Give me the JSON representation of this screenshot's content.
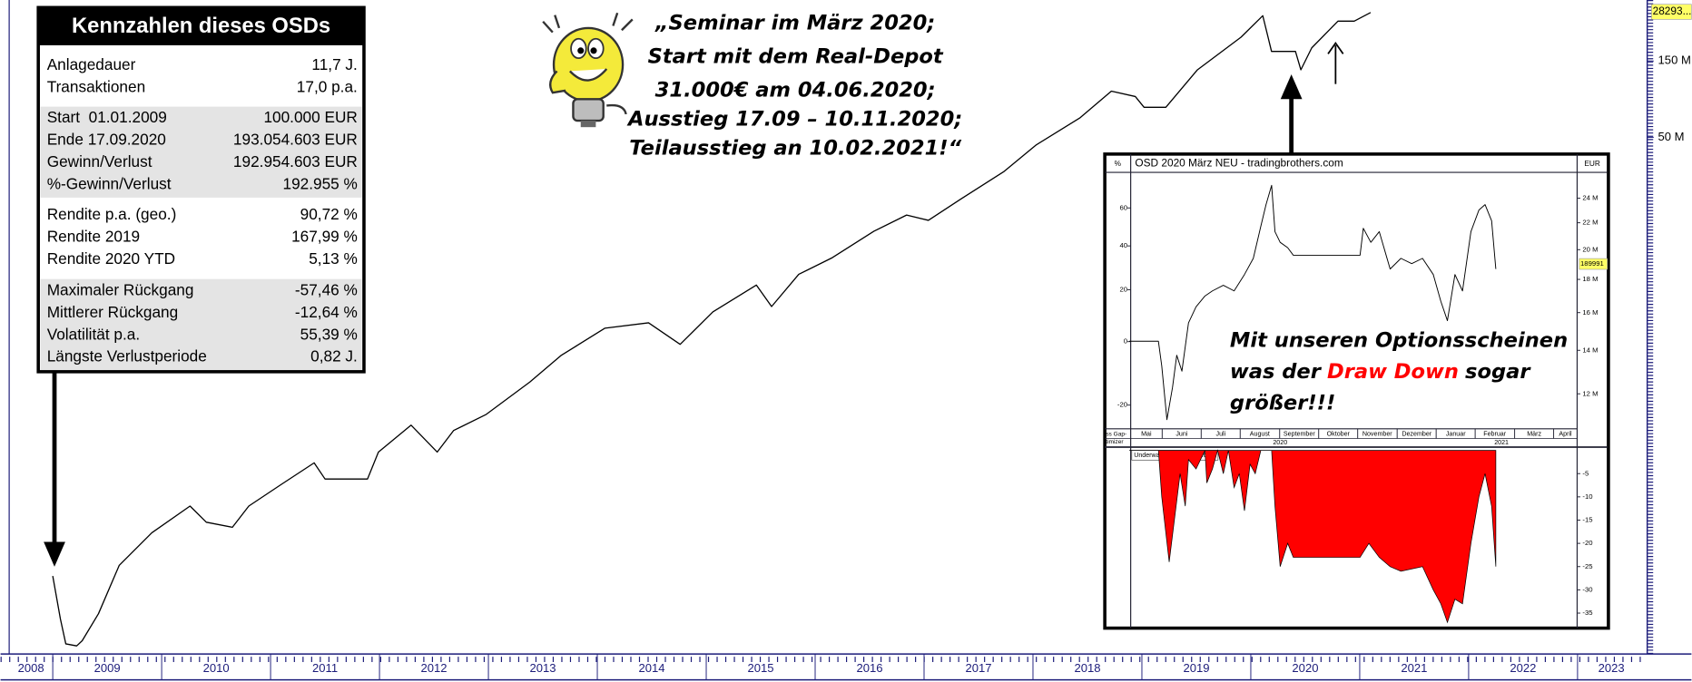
{
  "chart_data": [
    {
      "type": "line",
      "color": "#000000",
      "log_scale": true,
      "xlim": [
        2008.6,
        2023.62
      ],
      "ylim": [
        30000,
        360000000
      ],
      "xticks": [
        {
          "value": 2008,
          "label": "2008"
        },
        {
          "value": 2009,
          "label": "2009"
        },
        {
          "value": 2010,
          "label": "2010"
        },
        {
          "value": 2011,
          "label": "2011"
        },
        {
          "value": 2012,
          "label": "2012"
        },
        {
          "value": 2013,
          "label": "2013"
        },
        {
          "value": 2014,
          "label": "2014"
        },
        {
          "value": 2015,
          "label": "2015"
        },
        {
          "value": 2016,
          "label": "2016"
        },
        {
          "value": 2017,
          "label": "2017"
        },
        {
          "value": 2018,
          "label": "2018"
        },
        {
          "value": 2019,
          "label": "2019"
        },
        {
          "value": 2020,
          "label": "2020"
        },
        {
          "value": 2021,
          "label": "2021"
        },
        {
          "value": 2022,
          "label": "2022"
        },
        {
          "value": 2023,
          "label": "2023"
        }
      ],
      "yticks": [
        {
          "value": 150000000,
          "label": "150 M"
        },
        {
          "value": 50000000,
          "label": "50 M"
        }
      ],
      "current_value_label": "28293...",
      "x": [
        2009.0,
        2009.07,
        2009.12,
        2009.22,
        2009.27,
        2009.42,
        2009.61,
        2009.91,
        2010.26,
        2010.41,
        2010.65,
        2010.8,
        2011.1,
        2011.4,
        2011.5,
        2011.89,
        2011.99,
        2012.29,
        2012.53,
        2012.68,
        2012.98,
        2013.38,
        2013.67,
        2014.07,
        2014.47,
        2014.76,
        2015.06,
        2015.46,
        2015.6,
        2015.85,
        2016.15,
        2016.54,
        2016.84,
        2017.04,
        2017.34,
        2017.73,
        2018.03,
        2018.43,
        2018.72,
        2018.94,
        2019.02,
        2019.22,
        2019.51,
        2019.91,
        2020.11,
        2020.19,
        2020.41,
        2020.46,
        2020.56,
        2020.8,
        2020.95,
        2021.1
      ],
      "values": [
        92000,
        49600,
        34700,
        33700,
        36300,
        53500,
        107000,
        171000,
        251000,
        199000,
        185000,
        251000,
        343000,
        467000,
        370000,
        370000,
        545000,
        802000,
        545000,
        743000,
        937000,
        1490000,
        2190000,
        3230000,
        3490000,
        2560000,
        4080000,
        6000000,
        4410000,
        7000000,
        8830000,
        13000000,
        16400000,
        15200000,
        20700000,
        30500000,
        44900000,
        66100000,
        97200000,
        90000000,
        77100000,
        77100000,
        132000000,
        211000000,
        287000000,
        172000000,
        172000000,
        132000000,
        181000000,
        266000000,
        266000000,
        301000000
      ]
    },
    {
      "type": "line",
      "color": "#000000",
      "title": "OSD 2020 März NEU - tradingbrothers.com",
      "log_scale": true,
      "ylabel": "EUR",
      "y2label": "%",
      "y2scale": "log-return",
      "xlim": [
        2020.35,
        2021.3
      ],
      "ylim": [
        10600000,
        26300000
      ],
      "y2lim": [
        -26.4,
        81.3
      ],
      "xticks": [
        {
          "value": 2020.333,
          "label": "Mai"
        },
        {
          "value": 2020.417,
          "label": "Juni"
        },
        {
          "value": 2020.5,
          "label": "Juli"
        },
        {
          "value": 2020.583,
          "label": "August"
        },
        {
          "value": 2020.667,
          "label": "September"
        },
        {
          "value": 2020.75,
          "label": "Oktober"
        },
        {
          "value": 2020.833,
          "label": "November"
        },
        {
          "value": 2020.917,
          "label": "Dezember"
        },
        {
          "value": 2021.0,
          "label": "Januar"
        },
        {
          "value": 2021.083,
          "label": "Februar"
        },
        {
          "value": 2021.167,
          "label": "März"
        },
        {
          "value": 2021.25,
          "label": "April"
        }
      ],
      "year_labels": [
        {
          "value": 2020.668,
          "label": "2020"
        },
        {
          "value": 2021.139,
          "label": "2021"
        }
      ],
      "yticks": [
        {
          "value": 24000000,
          "label": "24 M"
        },
        {
          "value": 22000000,
          "label": "22 M"
        },
        {
          "value": 20000000,
          "label": "20 M"
        },
        {
          "value": 18000000,
          "label": "18 M"
        },
        {
          "value": 16000000,
          "label": "16 M"
        },
        {
          "value": 14000000,
          "label": "14 M"
        },
        {
          "value": 12000000,
          "label": "12 M"
        }
      ],
      "y2ticks": [
        60,
        40,
        20,
        0,
        -20
      ],
      "current_value_label": "189991",
      "corner_label": [
        "ss Gap-",
        "timizer"
      ],
      "x": [
        2020.347,
        2020.409,
        2020.416,
        2020.427,
        2020.439,
        2020.448,
        2020.459,
        2020.473,
        2020.489,
        2020.508,
        2020.524,
        2020.547,
        2020.57,
        2020.592,
        2020.611,
        2020.627,
        2020.638,
        2020.65,
        2020.657,
        2020.668,
        2020.684,
        2020.696,
        2020.838,
        2020.845,
        2020.861,
        2020.879,
        2020.902,
        2020.925,
        2020.948,
        2020.971,
        2020.994,
        2021.01,
        2021.024,
        2021.04,
        2021.056,
        2021.074,
        2021.091,
        2021.104,
        2021.118,
        2021.127
      ],
      "values": [
        14460000,
        14460000,
        13250000,
        10950000,
        12280000,
        13760000,
        13000000,
        15430000,
        16330000,
        16970000,
        17280000,
        17630000,
        17280000,
        18310000,
        19390000,
        21740000,
        23460000,
        25120000,
        21320000,
        20530000,
        20140000,
        19610000,
        19610000,
        21570000,
        20530000,
        21320000,
        18670000,
        19390000,
        19030000,
        19390000,
        18310000,
        16650000,
        15550000,
        18310000,
        17280000,
        21320000,
        23010000,
        23460000,
        22160000,
        18670000
      ]
    },
    {
      "type": "area",
      "color": "#ff0000",
      "title": "Underwater rollierend (260)",
      "xlim": [
        2020.35,
        2021.3
      ],
      "ylim": [
        -38,
        0
      ],
      "yticks": [
        -5,
        -10,
        -15,
        -20,
        -25,
        -30,
        -35
      ],
      "x": [
        2020.347,
        2020.409,
        2020.416,
        2020.432,
        2020.443,
        2020.455,
        2020.466,
        2020.473,
        2020.489,
        2020.508,
        2020.512,
        2020.524,
        2020.535,
        2020.547,
        2020.558,
        2020.57,
        2020.581,
        2020.592,
        2020.604,
        2020.615,
        2020.627,
        2020.65,
        2020.657,
        2020.668,
        2020.684,
        2020.696,
        2020.838,
        2020.857,
        2020.879,
        2020.902,
        2020.925,
        2020.971,
        2020.994,
        2021.01,
        2021.024,
        2021.04,
        2021.056,
        2021.074,
        2021.091,
        2021.104,
        2021.118,
        2021.127
      ],
      "values": [
        0,
        0,
        -10,
        -24,
        -15,
        -5,
        -12,
        -2,
        -4,
        0,
        -7,
        -4,
        0,
        -5,
        0,
        -8,
        -5,
        -13,
        -3,
        -5,
        0,
        0,
        -12,
        -25,
        -20,
        -23,
        -23,
        -20,
        -23,
        -25,
        -26,
        -25,
        -30,
        -33,
        -37,
        -32,
        -33,
        -20,
        -10,
        -5,
        -12,
        -25
      ]
    }
  ],
  "stats_box": {
    "title": "Kennzahlen dieses OSDs",
    "groups": [
      [
        [
          "Anlagedauer",
          "11,7 J."
        ],
        [
          "Transaktionen",
          "17,0 p.a."
        ]
      ],
      [
        [
          "Start  01.01.2009",
          "100.000 EUR"
        ],
        [
          "Ende 17.09.2020",
          "193.054.603 EUR"
        ],
        [
          "Gewinn/Verlust",
          "192.954.603 EUR"
        ],
        [
          "%-Gewinn/Verlust",
          "192.955 %"
        ]
      ],
      [
        [
          "Rendite p.a. (geo.)",
          "90,72 %"
        ],
        [
          "Rendite 2019",
          "167,99 %"
        ],
        [
          "Rendite 2020 YTD",
          "5,13 %"
        ]
      ],
      [
        [
          "Maximaler Rückgang",
          "-57,46 %"
        ],
        [
          "Mittlerer Rückgang",
          "-12,64 %"
        ],
        [
          "Volatilität p.a.",
          "55,39 %"
        ],
        [
          "Längste Verlustperiode",
          "0,82 J."
        ]
      ]
    ]
  },
  "callout": {
    "lines": [
      "„Seminar im März 2020;",
      "Start mit dem Real-Depot",
      "31.000€ am 04.06.2020;",
      "Ausstieg 17.09 – 10.11.2020;",
      "Teilausstieg an 10.02.2021!“"
    ]
  },
  "inset_note": {
    "lines": [
      [
        {
          "text": "Mit unseren Optionsscheinen"
        }
      ],
      [
        {
          "text": "was der"
        },
        {
          "text": "Draw Down",
          "color": "#ff0000"
        },
        {
          "text": "sogar"
        }
      ],
      [
        {
          "text": "größer!!!"
        }
      ]
    ]
  }
}
